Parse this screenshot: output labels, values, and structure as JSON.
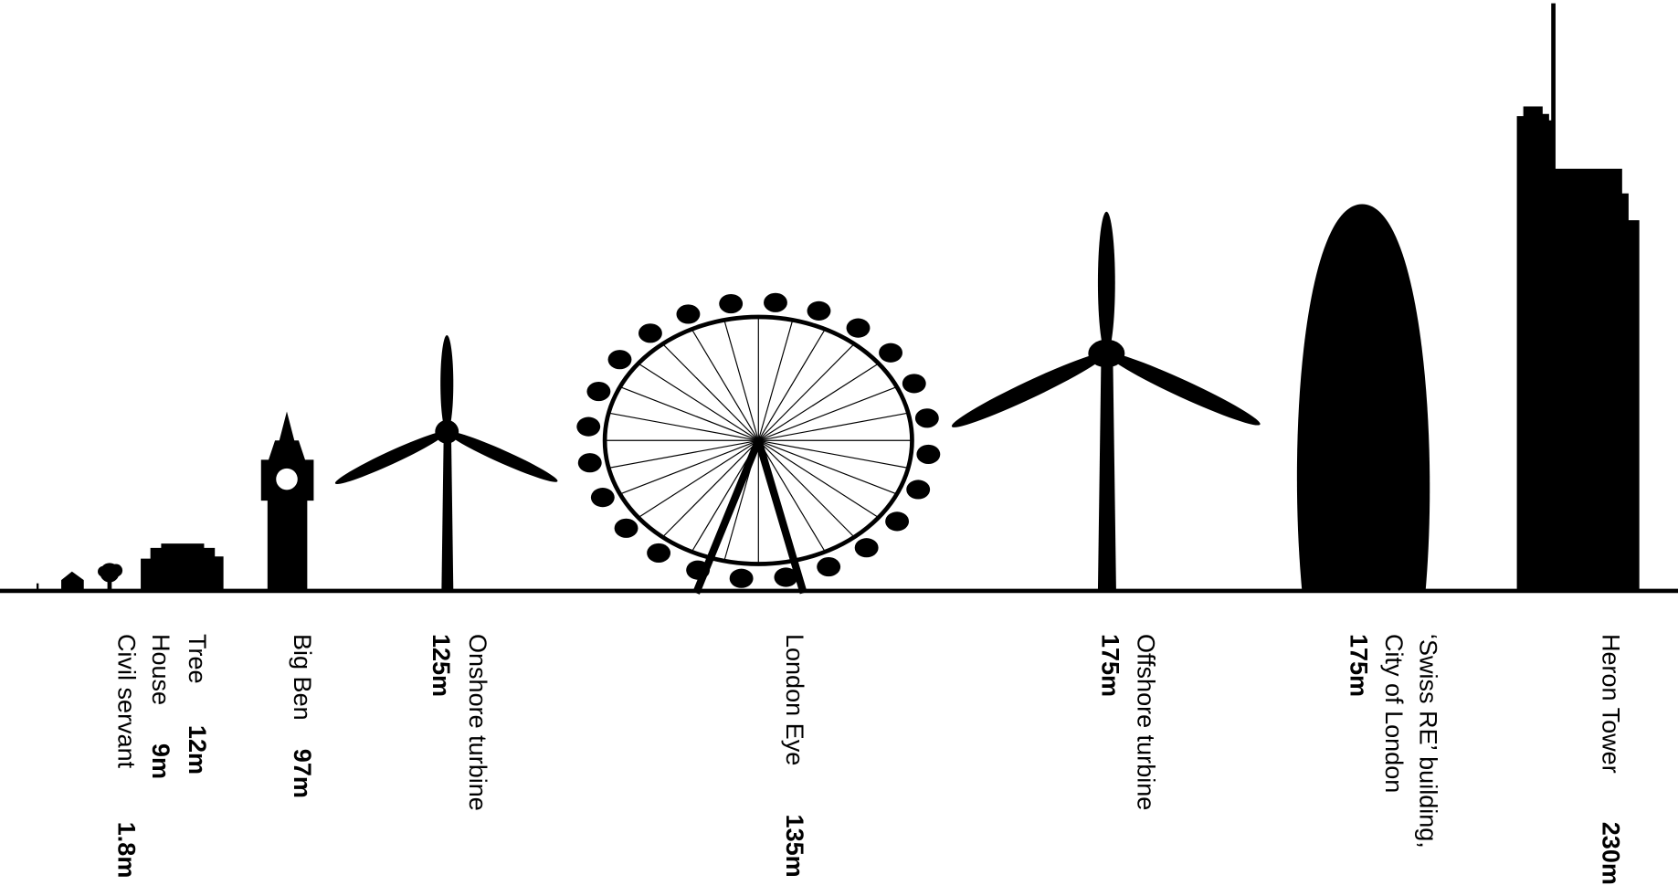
{
  "items": [
    {
      "name": "Tree",
      "height": "12m"
    },
    {
      "name": "House",
      "height": "9m"
    },
    {
      "name": "Civil servant",
      "height": "1.8m"
    },
    {
      "name": "Big Ben",
      "height": "97m"
    },
    {
      "name": "Onshore turbine",
      "height": "125m"
    },
    {
      "name": "London Eye",
      "height": "135m"
    },
    {
      "name": "Offshore turbine",
      "height": "175m"
    },
    {
      "name": [
        "‘Swiss RE’ building,",
        "City of London"
      ],
      "height": "175m"
    },
    {
      "name": "Heron Tower",
      "height": "230m"
    }
  ]
}
